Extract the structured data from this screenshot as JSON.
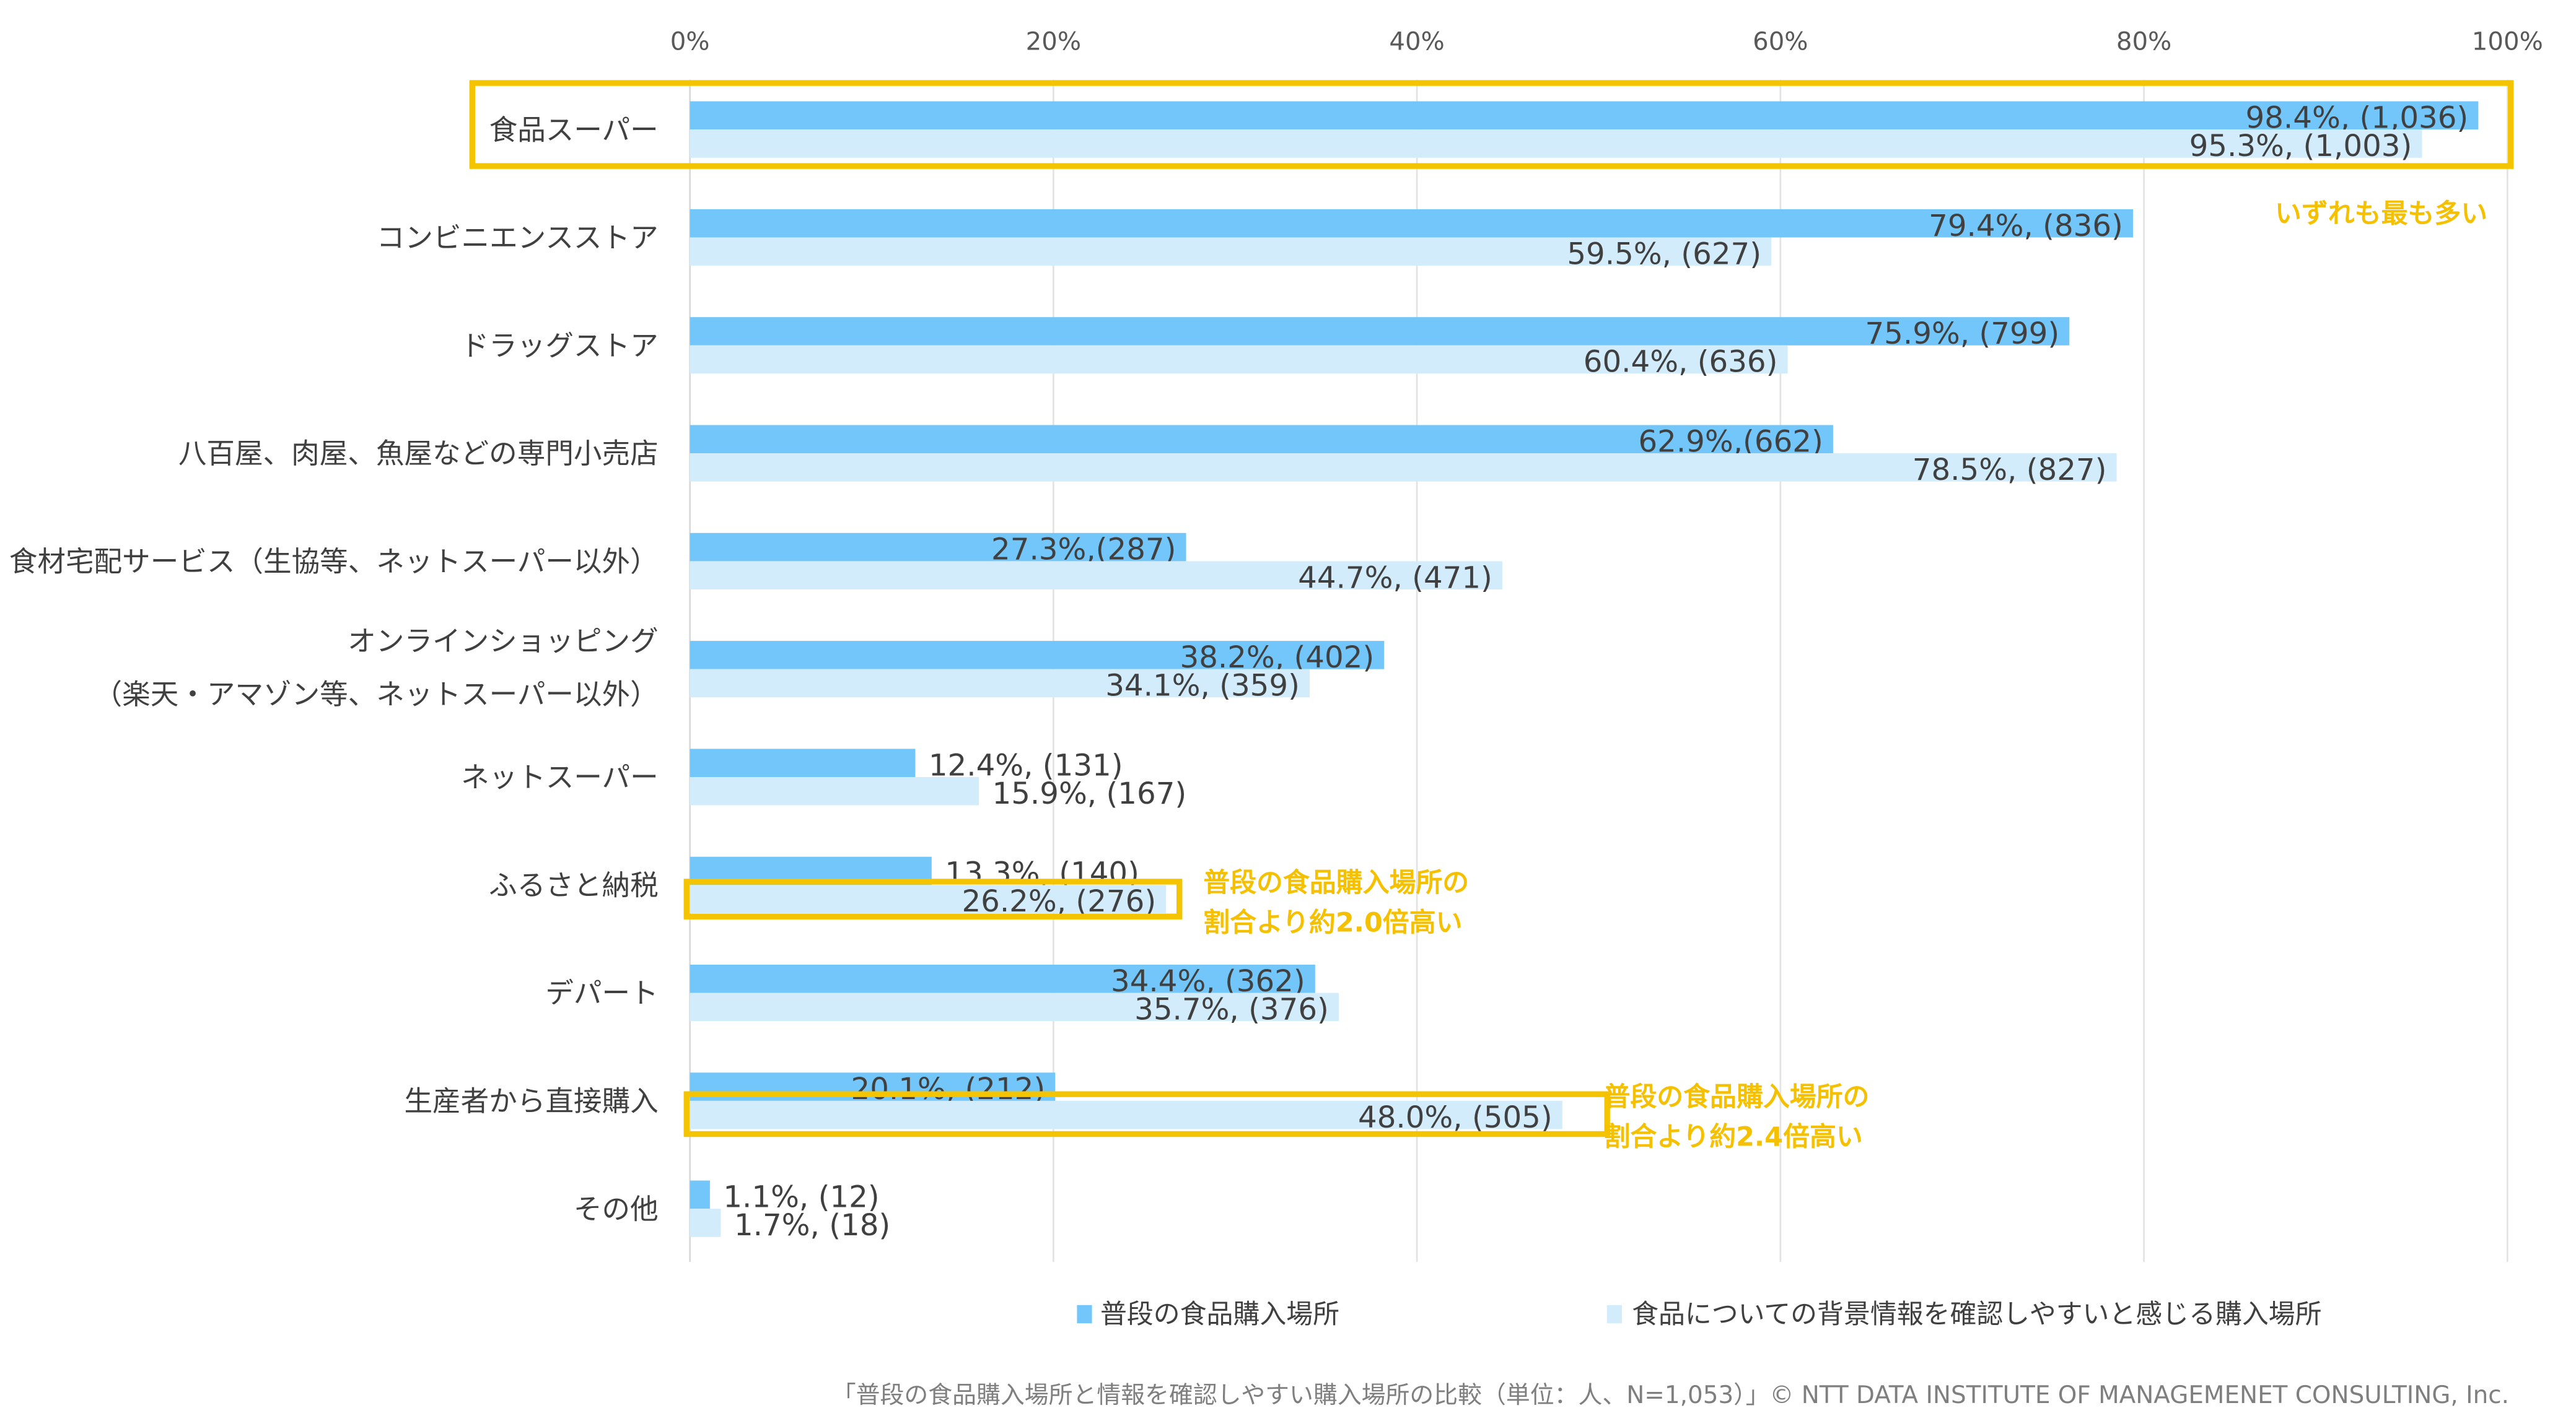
{
  "chart_data": {
    "type": "bar",
    "orientation": "horizontal",
    "xlim": [
      0,
      100
    ],
    "x_ticks": [
      "0%",
      "20%",
      "40%",
      "60%",
      "80%",
      "100%"
    ],
    "grid": true,
    "legend_position": "bottom",
    "categories": [
      [
        "食品スーパー"
      ],
      [
        "コンビニエンスストア"
      ],
      [
        "ドラッグストア"
      ],
      [
        "八百屋、肉屋、魚屋などの専門小売店"
      ],
      [
        "食材宅配サービス（生協等、ネットスーパー以外）"
      ],
      [
        "オンラインショッピング",
        "（楽天・アマゾン等、ネットスーパー以外）"
      ],
      [
        "ネットスーパー"
      ],
      [
        "ふるさと納税"
      ],
      [
        "デパート"
      ],
      [
        "生産者から直接購入"
      ],
      [
        "その他"
      ]
    ],
    "series": [
      {
        "name": "普段の食品購入場所",
        "color": "#73C6F9",
        "values": [
          98.4,
          79.4,
          75.9,
          62.9,
          27.3,
          38.2,
          12.4,
          13.3,
          34.4,
          20.1,
          1.1
        ],
        "labels": [
          "98.4%, (1,036)",
          "79.4%, (836)",
          "75.9%, (799)",
          "62.9%,(662)",
          "27.3%,(287)",
          "38.2%, (402)",
          "12.4%, (131)",
          "13.3%, (140)",
          "34.4%, (362)",
          "20.1%, (212)",
          "1.1%, (12)"
        ]
      },
      {
        "name": "食品についての背景情報を確認しやすいと感じる購入場所",
        "color": "#D3ECFB",
        "values": [
          95.3,
          59.5,
          60.4,
          78.5,
          44.7,
          34.1,
          15.9,
          26.2,
          35.7,
          48.0,
          1.7
        ],
        "labels": [
          "95.3%, (1,003)",
          "59.5%, (627)",
          "60.4%, (636)",
          "78.5%, (827)",
          "44.7%, (471)",
          "34.1%, (359)",
          "15.9%, (167)",
          "26.2%, (276)",
          "35.7%, (376)",
          "48.0%, (505)",
          "1.7%, (18)"
        ]
      }
    ],
    "annotations": [
      {
        "target": "食品スーパー (both series)",
        "lines": [
          "いずれも最も多い"
        ]
      },
      {
        "target": "ふるさと納税 (series 2)",
        "lines": [
          "普段の食品購入場所の",
          "割合より約2.0倍高い"
        ]
      },
      {
        "target": "生産者から直接購入 (series 2)",
        "lines": [
          "普段の食品購入場所の",
          "割合より約2.4倍高い"
        ]
      }
    ],
    "highlight_color": "#F5C400",
    "footer": "「普段の食品購入場所と情報を確認しやすい購入場所の比較（単位：人、N=1,053）」© NTT DATA INSTITUTE OF MANAGEMENET CONSULTING, Inc."
  }
}
